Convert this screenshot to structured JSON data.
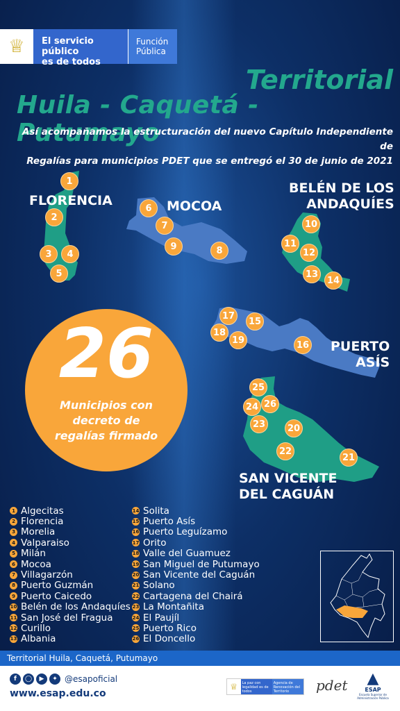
{
  "header": {
    "brand_line1": "El servicio público",
    "brand_line2": "es de todos",
    "entity_line1": "Función",
    "entity_line2": "Pública"
  },
  "title": {
    "line1": "Territorial",
    "line2": "Huila - Caquetá - Putumayo"
  },
  "subtitle": {
    "line1": "Así acompañamos la estructuración del nuevo Capítulo Independiente de",
    "line2": "Regalías para municipios PDET que se entregó el 30 de junio de 2021"
  },
  "regions": {
    "florencia": "FLORENCIA",
    "mocoa": "MOCOA",
    "belen_1": "BELÉN DE LOS",
    "belen_2": "ANDAQUÍES",
    "puerto_asis_1": "PUERTO",
    "puerto_asis_2": "ASÍS",
    "san_vicente_1": "SAN VICENTE",
    "san_vicente_2": "DEL CAGUÁN"
  },
  "highlight": {
    "number": "26",
    "line1": "Municipios con",
    "line2": "decreto de",
    "line3": "regalías firmado"
  },
  "municipalities_col1": [
    {
      "n": "1",
      "name": "Algecitas"
    },
    {
      "n": "2",
      "name": "Florencia"
    },
    {
      "n": "3",
      "name": "Morelia"
    },
    {
      "n": "4",
      "name": "Valparaiso"
    },
    {
      "n": "5",
      "name": "Milán"
    },
    {
      "n": "6",
      "name": "Mocoa"
    },
    {
      "n": "7",
      "name": "Villagarzón"
    },
    {
      "n": "8",
      "name": "Puerto Guzmán"
    },
    {
      "n": "9",
      "name": "Puerto Caicedo"
    },
    {
      "n": "10",
      "name": "Belén de los Andaquíes"
    },
    {
      "n": "11",
      "name": "San José del Fragua"
    },
    {
      "n": "12",
      "name": "Curillo"
    },
    {
      "n": "13",
      "name": "Albania"
    }
  ],
  "municipalities_col2": [
    {
      "n": "14",
      "name": "Solita"
    },
    {
      "n": "15",
      "name": "Puerto Asís"
    },
    {
      "n": "16",
      "name": "Puerto Leguízamo"
    },
    {
      "n": "17",
      "name": "Orito"
    },
    {
      "n": "18",
      "name": "Valle del Guamuez"
    },
    {
      "n": "19",
      "name": "San Miguel de Putumayo"
    },
    {
      "n": "20",
      "name": "San Vicente del Caguán"
    },
    {
      "n": "21",
      "name": "Solano"
    },
    {
      "n": "22",
      "name": "Cartagena del Chairá"
    },
    {
      "n": "23",
      "name": "La Montañita"
    },
    {
      "n": "24",
      "name": "El Paujíl"
    },
    {
      "n": "25",
      "name": "Puerto Rico"
    },
    {
      "n": "26",
      "name": "El Doncello"
    }
  ],
  "footer": {
    "band": "Territorial Huila, Caquetá, Putumayo",
    "handle": "@esapoficial",
    "website": "www.esap.edu.co",
    "gov_line1": "La paz con legalidad es de todos",
    "gov_line2": "Agencia de Renovación del Territorio",
    "pdet": "pdet",
    "esap_name": "ESAP",
    "esap_sub": "Escuela Superior de Administración Pública"
  },
  "colors": {
    "accent": "#f9a63a",
    "title": "#23a88d",
    "map_green": "#1f9e86",
    "map_blue": "#4a7ac4",
    "background": "#0d2f66"
  }
}
